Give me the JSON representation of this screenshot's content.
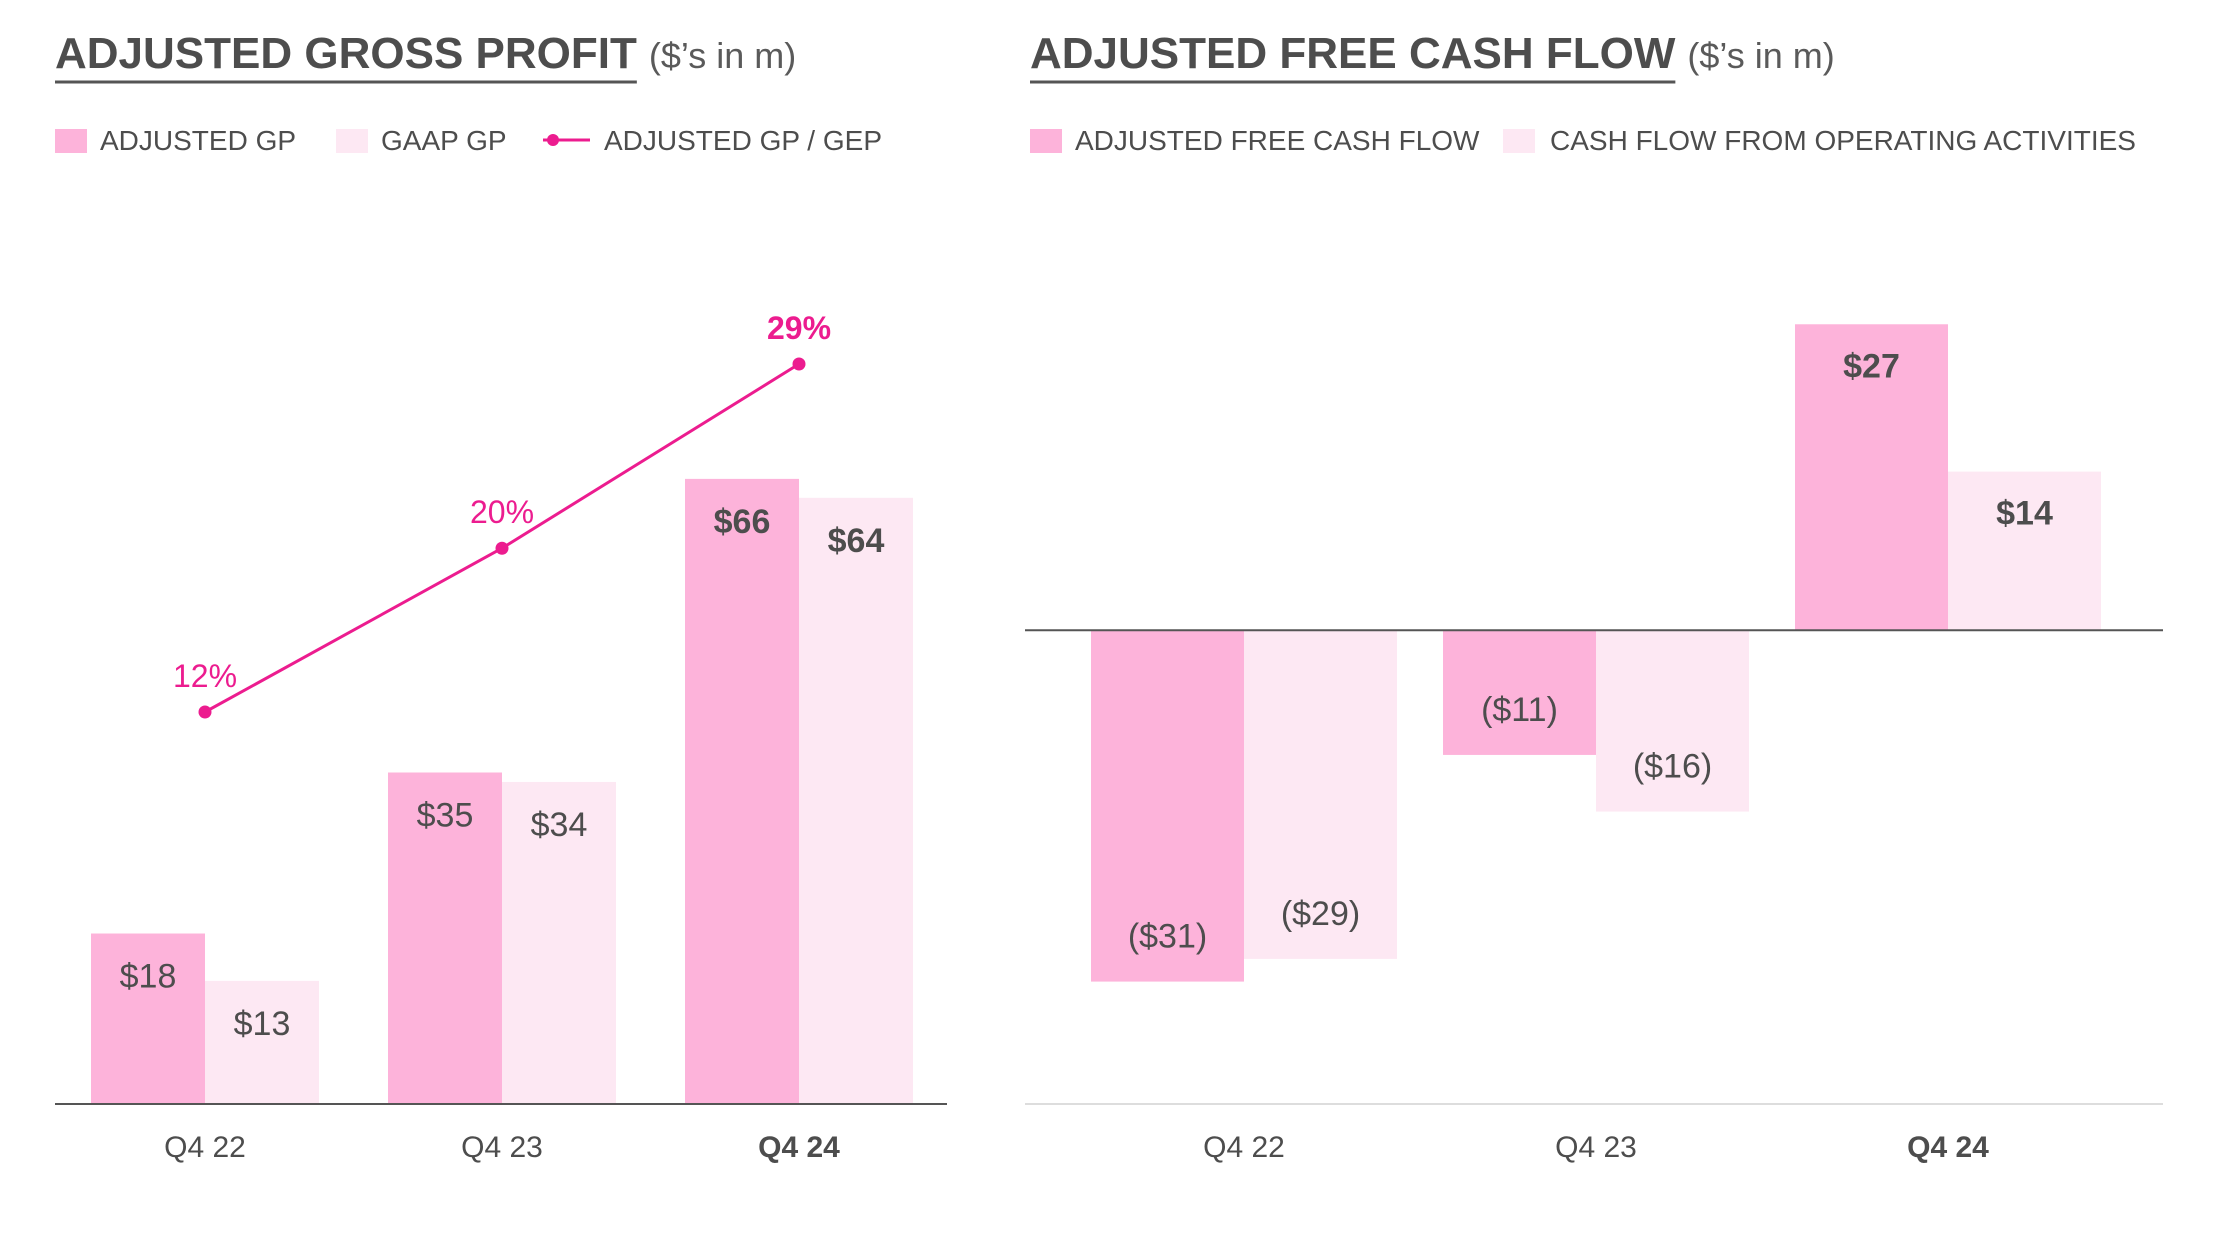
{
  "colors": {
    "primary_bar": "#fdb3da",
    "secondary_bar": "#fde8f3",
    "line": "#ec1c8f",
    "text": "#4d4d4d",
    "axis": "#555555",
    "axis_light": "#dddddd"
  },
  "left_chart": {
    "title": "ADJUSTED GROSS PROFIT",
    "unit": "($’s in m)",
    "legend": [
      {
        "label": "ADJUSTED GP",
        "type": "swatch",
        "color": "#fdb3da"
      },
      {
        "label": "GAAP GP",
        "type": "swatch",
        "color": "#fde8f3"
      },
      {
        "label": "ADJUSTED GP / GEP",
        "type": "line",
        "color": "#ec1c8f"
      }
    ]
  },
  "right_chart": {
    "title": "ADJUSTED FREE CASH FLOW",
    "unit": "($’s in m)",
    "legend": [
      {
        "label": "ADJUSTED FREE CASH FLOW",
        "type": "swatch",
        "color": "#fdb3da"
      },
      {
        "label": "CASH FLOW FROM OPERATING ACTIVITIES",
        "type": "swatch",
        "color": "#fde8f3"
      }
    ]
  },
  "chart_data": [
    {
      "type": "bar",
      "title": "ADJUSTED GROSS PROFIT",
      "subtitle": "($’s in m)",
      "categories": [
        "Q4 22",
        "Q4 23",
        "Q4 24"
      ],
      "bold_category": "Q4 24",
      "series": [
        {
          "name": "ADJUSTED GP",
          "values": [
            18,
            35,
            66
          ],
          "labels": [
            "$18",
            "$35",
            "$66"
          ],
          "color": "#fdb3da"
        },
        {
          "name": "GAAP GP",
          "values": [
            13,
            34,
            64
          ],
          "labels": [
            "$13",
            "$34",
            "$64"
          ],
          "color": "#fde8f3"
        }
      ],
      "line_series": {
        "name": "ADJUSTED GP / GEP",
        "values": [
          12,
          20,
          29
        ],
        "labels": [
          "12%",
          "20%",
          "29%"
        ],
        "unit": "%",
        "color": "#ec1c8f"
      },
      "ylim": [
        0,
        70
      ],
      "grid": false,
      "legend_position": "top-left"
    },
    {
      "type": "bar",
      "title": "ADJUSTED FREE CASH FLOW",
      "subtitle": "($’s in m)",
      "categories": [
        "Q4 22",
        "Q4 23",
        "Q4 24"
      ],
      "bold_category": "Q4 24",
      "series": [
        {
          "name": "ADJUSTED FREE CASH FLOW",
          "values": [
            -31,
            -11,
            27
          ],
          "labels": [
            "($31)",
            "($11)",
            "$27"
          ],
          "color": "#fdb3da"
        },
        {
          "name": "CASH FLOW FROM OPERATING ACTIVITIES",
          "values": [
            -29,
            -16,
            14
          ],
          "labels": [
            "($29)",
            "($16)",
            "$14"
          ],
          "color": "#fde8f3"
        }
      ],
      "ylim": [
        -41.8,
        27.2
      ],
      "grid": false,
      "legend_position": "top-left"
    }
  ]
}
